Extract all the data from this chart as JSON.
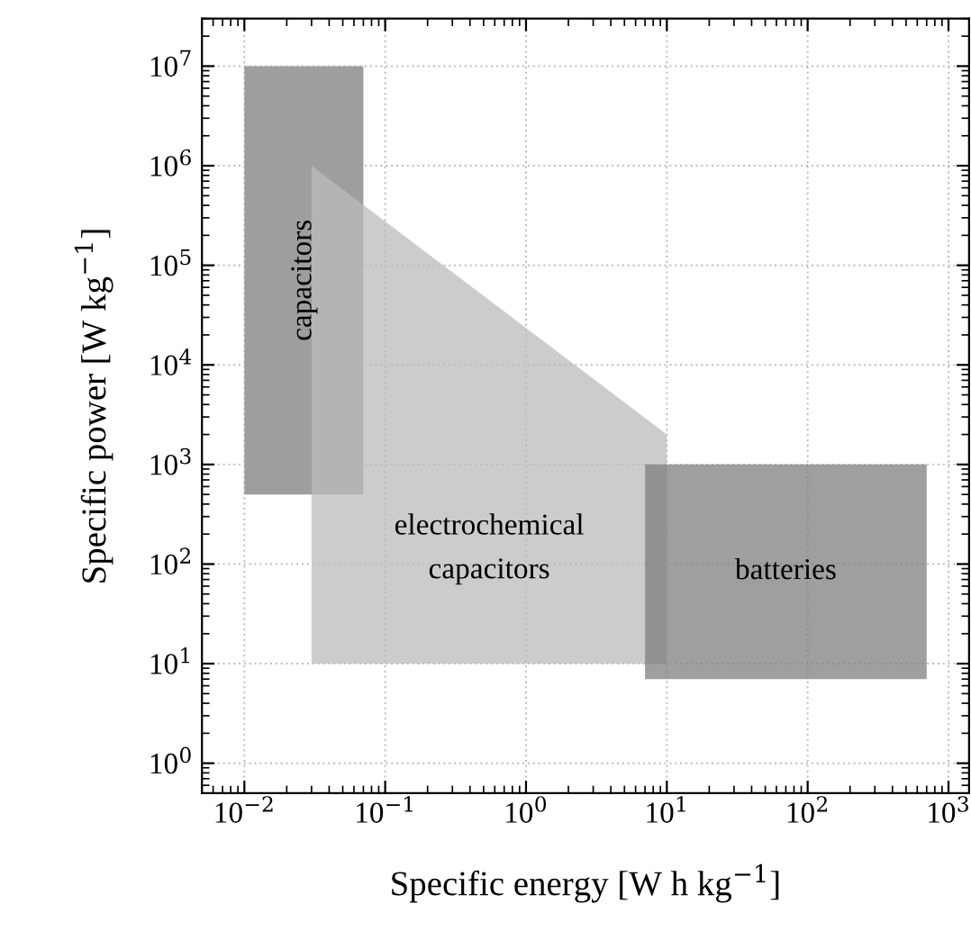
{
  "chart_data": {
    "type": "area",
    "xlabel": "Specific energy [W h kg$^{−1}$]",
    "ylabel": "Specific power [W kg$^{−1}$]",
    "log": "xy",
    "grid": true,
    "legend": false,
    "xlim": [
      0.005,
      1400
    ],
    "ylim": [
      0.5,
      30000000
    ],
    "xticks": [
      {
        "value": 0.01,
        "label": "10$^{−2}$"
      },
      {
        "value": 0.1,
        "label": "10$^{−1}$"
      },
      {
        "value": 1,
        "label": "10$^{0}$"
      },
      {
        "value": 10,
        "label": "10$^{1}$"
      },
      {
        "value": 100,
        "label": "10$^{2}$"
      },
      {
        "value": 1000,
        "label": "10$^{3}$"
      }
    ],
    "yticks": [
      {
        "value": 1,
        "label": "10$^{0}$"
      },
      {
        "value": 10,
        "label": "10$^{1}$"
      },
      {
        "value": 100,
        "label": "10$^{2}$"
      },
      {
        "value": 1000,
        "label": "10$^{3}$"
      },
      {
        "value": 10000,
        "label": "10$^{4}$"
      },
      {
        "value": 100000,
        "label": "10$^{5}$"
      },
      {
        "value": 1000000,
        "label": "10$^{6}$"
      },
      {
        "value": 10000000,
        "label": "10$^{7}$"
      }
    ],
    "series": [
      {
        "name": "capacitors",
        "color": "#9e9e9e",
        "x": [
          0.01,
          0.07,
          0.07,
          0.01
        ],
        "values": [
          10000000,
          10000000,
          500,
          500
        ]
      },
      {
        "name": "electrochemical\ncapacitors",
        "color": "#cccccc",
        "x": [
          0.03,
          10,
          10,
          0.03
        ],
        "values": [
          1000000,
          2000,
          10,
          10
        ]
      },
      {
        "name": "batteries",
        "color": "#9f9f9f",
        "x": [
          7,
          700,
          700,
          7
        ],
        "values": [
          1000,
          1000,
          7,
          7
        ]
      }
    ]
  }
}
